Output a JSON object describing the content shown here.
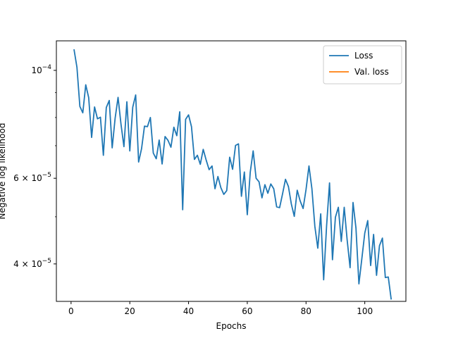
{
  "chart_data": {
    "type": "line",
    "title": "",
    "xlabel": "Epochs",
    "ylabel": "Negative log likelihood",
    "yscale": "log",
    "xlim": [
      -5,
      114
    ],
    "ylim": [
      3.35e-05,
      0.000115
    ],
    "grid": false,
    "legend_position": "top-right",
    "x_ticks": [
      0,
      20,
      40,
      60,
      80,
      100
    ],
    "y_ticks": [
      {
        "value": 4e-05,
        "label_base": "4 × 10",
        "label_exp": "−5"
      },
      {
        "value": 6e-05,
        "label_base": "6 × 10",
        "label_exp": "−5"
      },
      {
        "value": 0.0001,
        "label_base": "10",
        "label_exp": "−4"
      }
    ],
    "series": [
      {
        "name": "Loss",
        "color": "#1f77b4",
        "x": [
          1,
          2,
          3,
          4,
          5,
          6,
          7,
          8,
          9,
          10,
          11,
          12,
          13,
          14,
          15,
          16,
          17,
          18,
          19,
          20,
          21,
          22,
          23,
          24,
          25,
          26,
          27,
          28,
          29,
          30,
          31,
          32,
          33,
          34,
          35,
          36,
          37,
          38,
          39,
          40,
          41,
          42,
          43,
          44,
          45,
          46,
          47,
          48,
          49,
          50,
          51,
          52,
          53,
          54,
          55,
          56,
          57,
          58,
          59,
          60,
          61,
          62,
          63,
          64,
          65,
          66,
          67,
          68,
          69,
          70,
          71,
          72,
          73,
          74,
          75,
          76,
          77,
          78,
          79,
          80,
          81,
          82,
          83,
          84,
          85,
          86,
          87,
          88,
          89,
          90,
          91,
          92,
          93,
          94,
          95,
          96,
          97,
          98,
          99,
          100,
          101,
          102,
          103,
          104,
          105,
          106,
          107,
          108,
          109
        ],
        "y": [
          0.0001105,
          0.0001015,
          8.43e-05,
          8.18e-05,
          9.34e-05,
          8.79e-05,
          7.28e-05,
          8.41e-05,
          7.95e-05,
          8.01e-05,
          6.69e-05,
          8.39e-05,
          8.67e-05,
          6.93e-05,
          7.97e-05,
          8.8e-05,
          7.75e-05,
          6.97e-05,
          8.62e-05,
          6.83e-05,
          8.4e-05,
          8.9e-05,
          6.48e-05,
          6.9e-05,
          7.68e-05,
          7.66e-05,
          8e-05,
          6.76e-05,
          6.58e-05,
          7.19e-05,
          6.42e-05,
          7.31e-05,
          7.18e-05,
          6.95e-05,
          7.64e-05,
          7.34e-05,
          8.22e-05,
          5.17e-05,
          7.93e-05,
          8.1e-05,
          7.66e-05,
          6.56e-05,
          6.69e-05,
          6.41e-05,
          6.88e-05,
          6.54e-05,
          6.25e-05,
          6.36e-05,
          5.71e-05,
          6.05e-05,
          5.74e-05,
          5.56e-05,
          5.66e-05,
          6.63e-05,
          6.26e-05,
          7.01e-05,
          7.06e-05,
          5.51e-05,
          6.18e-05,
          5.05e-05,
          6.17e-05,
          6.83e-05,
          6e-05,
          5.9e-05,
          5.47e-05,
          5.82e-05,
          5.59e-05,
          5.84e-05,
          5.71e-05,
          5.24e-05,
          5.22e-05,
          5.57e-05,
          5.97e-05,
          5.77e-05,
          5.31e-05,
          5.01e-05,
          5.67e-05,
          5.39e-05,
          5.2e-05,
          5.69e-05,
          6.36e-05,
          5.71e-05,
          4.78e-05,
          4.31e-05,
          5.07e-05,
          3.71e-05,
          4.79e-05,
          5.87e-05,
          4.08e-05,
          4.99e-05,
          5.23e-05,
          4.45e-05,
          5.23e-05,
          4.48e-05,
          3.93e-05,
          5.35e-05,
          4.74e-05,
          3.64e-05,
          4.1e-05,
          4.63e-05,
          4.91e-05,
          3.97e-05,
          4.6e-05,
          3.79e-05,
          4.36e-05,
          4.52e-05,
          3.75e-05,
          3.76e-05,
          3.38e-05
        ]
      },
      {
        "name": "Val. loss",
        "color": "#ff7f0e",
        "x": [],
        "y": []
      }
    ]
  }
}
